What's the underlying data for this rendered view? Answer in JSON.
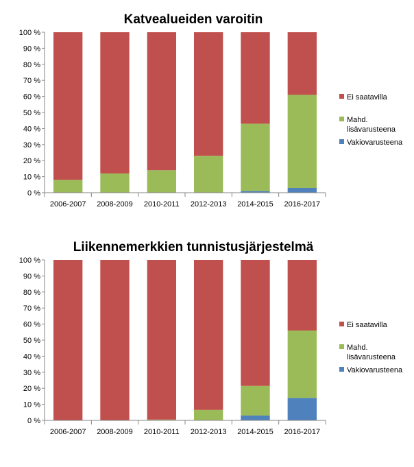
{
  "chart_data": [
    {
      "type": "bar",
      "stacked": true,
      "title": "Katvealueiden varoitin",
      "categories": [
        "2006-2007",
        "2008-2009",
        "2010-2011",
        "2012-2013",
        "2014-2015",
        "2016-2017"
      ],
      "ylim": [
        0,
        100
      ],
      "yticks": [
        "0 %",
        "10 %",
        "20 %",
        "30 %",
        "40 %",
        "50 %",
        "60 %",
        "70 %",
        "80 %",
        "90 %",
        "100 %"
      ],
      "grid": false,
      "legend_position": "right",
      "series": [
        {
          "name": "Vakiovarusteena",
          "color": "#4F81BD",
          "values": [
            0,
            0,
            0,
            0,
            1,
            3
          ]
        },
        {
          "name": "Mahd. lisävarusteena",
          "color": "#9BBB59",
          "values": [
            8,
            12,
            14,
            23,
            42,
            58
          ]
        },
        {
          "name": "Ei saatavilla",
          "color": "#C0504D",
          "values": [
            92,
            88,
            86,
            77,
            57,
            39
          ]
        }
      ],
      "legend": [
        {
          "lines": [
            "Ei saatavilla"
          ],
          "color": "#C0504D"
        },
        {
          "lines": [
            "Mahd.",
            "lisävarusteena"
          ],
          "color": "#9BBB59"
        },
        {
          "lines": [
            "Vakiovarusteena"
          ],
          "color": "#4F81BD"
        }
      ]
    },
    {
      "type": "bar",
      "stacked": true,
      "title": "Liikennemerkkien tunnistusjärjestelmä",
      "categories": [
        "2006-2007",
        "2008-2009",
        "2010-2011",
        "2012-2013",
        "2014-2015",
        "2016-2017"
      ],
      "ylim": [
        0,
        100
      ],
      "yticks": [
        "0 %",
        "10 %",
        "20 %",
        "30 %",
        "40 %",
        "50 %",
        "60 %",
        "70 %",
        "80 %",
        "90 %",
        "100 %"
      ],
      "grid": false,
      "legend_position": "right",
      "series": [
        {
          "name": "Vakiovarusteena",
          "color": "#4F81BD",
          "values": [
            0,
            0,
            0,
            0,
            3,
            14
          ]
        },
        {
          "name": "Mahd. lisävarusteena",
          "color": "#9BBB59",
          "values": [
            0,
            0,
            0.5,
            6.5,
            18.5,
            42
          ]
        },
        {
          "name": "Ei saatavilla",
          "color": "#C0504D",
          "values": [
            100,
            100,
            99.5,
            93.5,
            78.5,
            44
          ]
        }
      ],
      "legend": [
        {
          "lines": [
            "Ei saatavilla"
          ],
          "color": "#C0504D"
        },
        {
          "lines": [
            "Mahd.",
            "lisävarusteena"
          ],
          "color": "#9BBB59"
        },
        {
          "lines": [
            "Vakiovarusteena"
          ],
          "color": "#4F81BD"
        }
      ]
    }
  ]
}
